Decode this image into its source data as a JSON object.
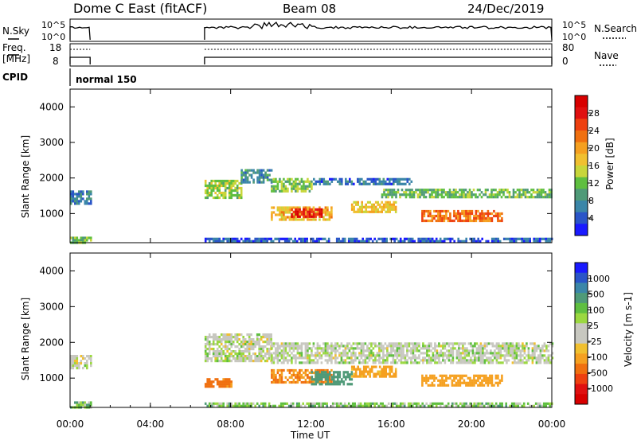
{
  "header": {
    "station": "Dome C East (fitACF)",
    "beam": "Beam 08",
    "date": "24/Dec/2019"
  },
  "nsky_panel": {
    "left_label": "N.Sky",
    "left_ticks": [
      "10^5",
      "10^0"
    ],
    "right_ticks": [
      "10^5",
      "10^0"
    ],
    "right_label": "N.Search"
  },
  "freq_panel": {
    "left_label_line1": "Freq.",
    "left_label_line2": "[MHz]",
    "left_ticks": [
      "18",
      "8"
    ],
    "right_ticks": [
      "80",
      "0"
    ],
    "right_label": "Nave"
  },
  "cpid": {
    "label": "CPID",
    "mode": "normal 150"
  },
  "time_axis": {
    "label": "Time UT",
    "ticks": [
      "00:00",
      "04:00",
      "08:00",
      "12:00",
      "16:00",
      "20:00",
      "00:00"
    ]
  },
  "power_panel": {
    "ylabel": "Slant Range [km]",
    "yticks": [
      "1000",
      "2000",
      "3000",
      "4000"
    ],
    "colorbar_label": "Power [dB]",
    "colorbar_ticks": [
      "4",
      "8",
      "12",
      "16",
      "20",
      "24",
      "28"
    ],
    "colorbar_colors": [
      "#1a1aff",
      "#2a55c8",
      "#3b86a8",
      "#4f9a78",
      "#5fbf40",
      "#c8d63a",
      "#f0c030",
      "#f5a020",
      "#f07010",
      "#ee4010",
      "#e01010",
      "#d80000"
    ]
  },
  "velocity_panel": {
    "ylabel": "Slant Range [km]",
    "yticks": [
      "1000",
      "2000",
      "3000",
      "4000"
    ],
    "colorbar_label": "Velocity [m s-1]",
    "colorbar_ticks": [
      "1000",
      "500",
      "100",
      "25",
      "-25",
      "-100",
      "-500",
      "-1000"
    ],
    "colorbar_colors": [
      "#1a1aff",
      "#2a55c8",
      "#3b86a8",
      "#4f9a78",
      "#5fbf40",
      "#9bd840",
      "#c8c8c0",
      "#c8c8c0",
      "#f0c030",
      "#f5a020",
      "#f07010",
      "#ee4010",
      "#e01010",
      "#d80000"
    ]
  },
  "chart_data": {
    "type": "heatmap",
    "x_range_hours": [
      0,
      24
    ],
    "y_range_km": [
      180,
      4500
    ],
    "power_bands": [
      {
        "t0": 0.0,
        "t1": 1.0,
        "r0": 1300,
        "r1": 1650,
        "value_db": 8
      },
      {
        "t0": 0.0,
        "t1": 1.0,
        "r0": 200,
        "r1": 350,
        "value_db": 12
      },
      {
        "t0": 6.7,
        "t1": 8.5,
        "r0": 1450,
        "r1": 1950,
        "value_db": 14
      },
      {
        "t0": 8.5,
        "t1": 10.0,
        "r0": 1850,
        "r1": 2250,
        "value_db": 9
      },
      {
        "t0": 10.0,
        "t1": 12.0,
        "r0": 1650,
        "r1": 2000,
        "value_db": 13
      },
      {
        "t0": 12.0,
        "t1": 17.0,
        "r0": 1850,
        "r1": 2000,
        "value_db": 7
      },
      {
        "t0": 15.5,
        "t1": 24.0,
        "r0": 1450,
        "r1": 1700,
        "value_db": 12
      },
      {
        "t0": 10.0,
        "t1": 13.0,
        "r0": 850,
        "r1": 1200,
        "value_db": 18
      },
      {
        "t0": 11.0,
        "t1": 12.5,
        "r0": 900,
        "r1": 1150,
        "value_db": 26
      },
      {
        "t0": 14.0,
        "t1": 16.2,
        "r0": 1050,
        "r1": 1350,
        "value_db": 17
      },
      {
        "t0": 17.5,
        "t1": 21.5,
        "r0": 800,
        "r1": 1100,
        "value_db": 22
      },
      {
        "t0": 6.7,
        "t1": 24.0,
        "r0": 200,
        "r1": 320,
        "value_db": 6
      }
    ],
    "velocity_bands": [
      {
        "t0": 0.0,
        "t1": 1.0,
        "r0": 1300,
        "r1": 1650,
        "value_ms": 0
      },
      {
        "t0": 0.0,
        "t1": 1.0,
        "r0": 200,
        "r1": 350,
        "value_ms": 60
      },
      {
        "t0": 6.7,
        "t1": 10.0,
        "r0": 1450,
        "r1": 2250,
        "value_ms": 0
      },
      {
        "t0": 10.0,
        "t1": 24.0,
        "r0": 1450,
        "r1": 2000,
        "value_ms": 5
      },
      {
        "t0": 10.0,
        "t1": 13.0,
        "r0": 850,
        "r1": 1250,
        "value_ms": -250
      },
      {
        "t0": 12.0,
        "t1": 14.0,
        "r0": 850,
        "r1": 1200,
        "value_ms": 200
      },
      {
        "t0": 14.0,
        "t1": 16.2,
        "r0": 1050,
        "r1": 1350,
        "value_ms": -150
      },
      {
        "t0": 17.5,
        "t1": 21.5,
        "r0": 800,
        "r1": 1100,
        "value_ms": -180
      },
      {
        "t0": 6.7,
        "t1": 8.0,
        "r0": 750,
        "r1": 1000,
        "value_ms": -300
      },
      {
        "t0": 6.7,
        "t1": 24.0,
        "r0": 200,
        "r1": 320,
        "value_ms": 50
      }
    ],
    "operation_intervals_hours": [
      [
        0.0,
        1.0
      ],
      [
        6.7,
        24.0
      ]
    ]
  }
}
